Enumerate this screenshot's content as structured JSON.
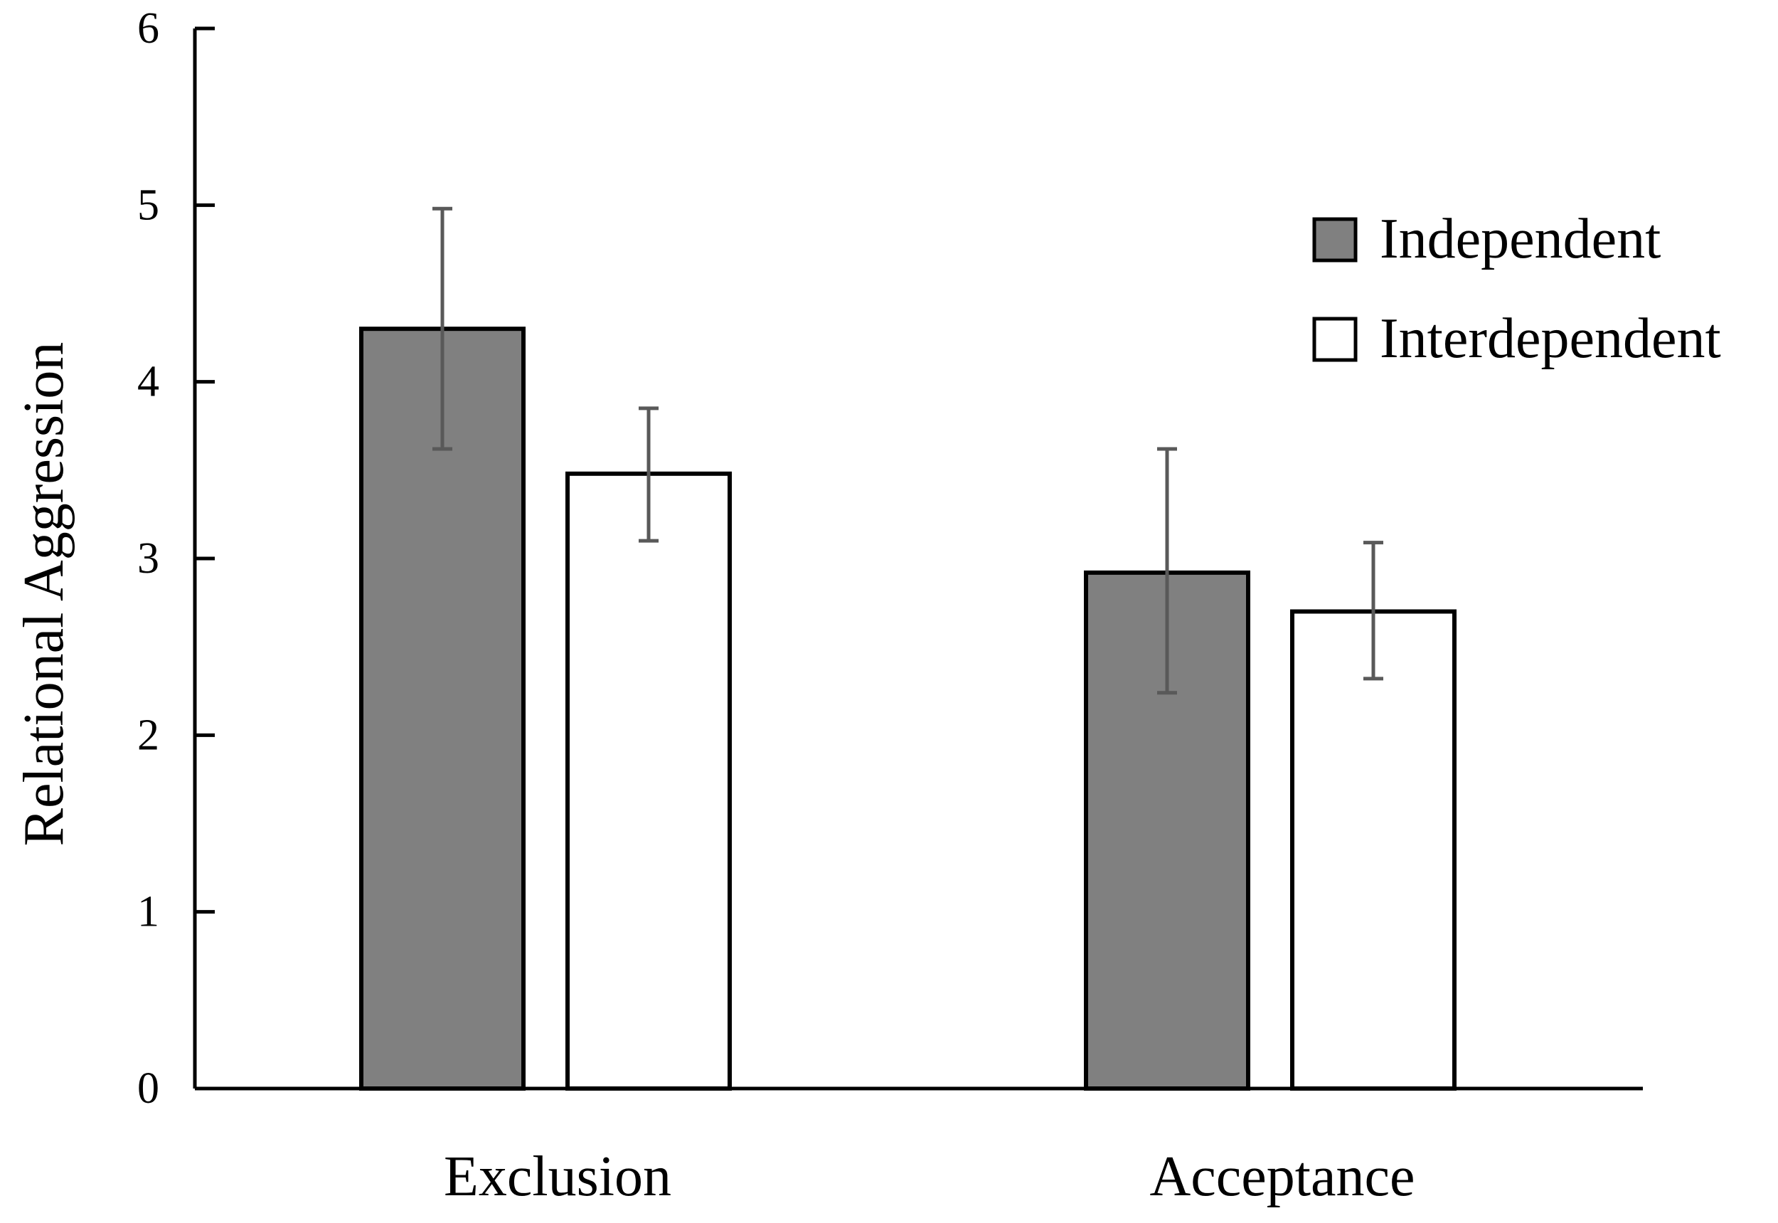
{
  "chart_data": {
    "type": "bar",
    "title": "",
    "xlabel": "",
    "ylabel": "Relational Aggression",
    "ylim": [
      0,
      6
    ],
    "yticks": [
      0,
      1,
      2,
      3,
      4,
      5,
      6
    ],
    "categories": [
      "Exclusion",
      "Acceptance"
    ],
    "series": [
      {
        "name": "Independent",
        "values": [
          4.3,
          2.92
        ],
        "error_low": [
          3.62,
          2.24
        ],
        "error_high": [
          4.98,
          3.62
        ],
        "color": "#808080"
      },
      {
        "name": "Interdependent",
        "values": [
          3.48,
          2.7
        ],
        "error_low": [
          3.1,
          2.32
        ],
        "error_high": [
          3.85,
          3.09
        ],
        "color": "#ffffff"
      }
    ],
    "legend_position": "top-right",
    "grid": false,
    "bar_edge_color": "#000000",
    "error_bar_color": "#595959"
  }
}
